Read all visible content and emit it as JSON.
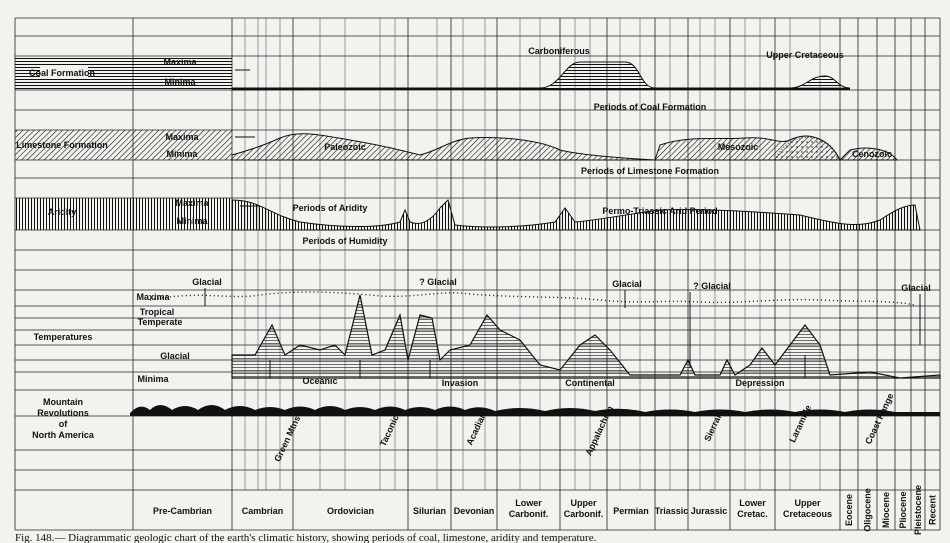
{
  "rows": {
    "coal": {
      "label": "Coal Formation",
      "maxima": "Maxima",
      "minima": "Minima",
      "notes": [
        "Carboniferous",
        "Upper Cretaceous",
        "Periods of Coal Formation"
      ]
    },
    "limestone": {
      "label": "Limestone Formation",
      "maxima": "Maxima",
      "minima": "Minima",
      "notes": [
        "Paleozoic",
        "Mesozoic",
        "Cenozoic",
        "Periods of Limestone Formation"
      ]
    },
    "aridity": {
      "label": "Aridity",
      "maxima": "Maxima",
      "minima": "Minima",
      "notes": [
        "Periods of Aridity",
        "Permo-Triassic Arid Period",
        "Periods of Humidity"
      ]
    },
    "temperatures": {
      "label": "Temperatures",
      "maxima": "Maxima",
      "tropical": "Tropical",
      "temperate": "Temperate",
      "glacial": "Glacial",
      "minima": "Minima",
      "glacials": [
        "Glacial",
        "? Glacial",
        "Glacial",
        "? Glacial",
        "Glacial"
      ],
      "notes": [
        "Oceanic",
        "Invasion",
        "Continental",
        "Depression"
      ]
    },
    "mountains": {
      "label": [
        "Mountain",
        "Revolutions",
        "of",
        "North America"
      ],
      "revolutions": [
        "Green Mtns",
        "Taconic",
        "Acadian",
        "Appalachian",
        "Sierran",
        "Laramide",
        "Coast Range"
      ]
    }
  },
  "periods": [
    "Pre-Cambrian",
    "Cambrian",
    "Ordovician",
    "Silurian",
    "Devonian",
    [
      "Lower",
      "Carbonif."
    ],
    [
      "Upper",
      "Carbonif."
    ],
    "Permian",
    "Triassic",
    "Jurassic",
    [
      "Lower",
      "Cretac."
    ],
    [
      "Upper",
      "Cretaceous"
    ],
    "Eocene",
    "Oligocene",
    "Miocene",
    "Pliocene",
    "Pleistocene",
    "Recent"
  ],
  "caption": "Fig. 148.— Diagrammatic geologic chart of the earth's climatic history, showing periods of coal, limestone, aridity and temperature."
}
